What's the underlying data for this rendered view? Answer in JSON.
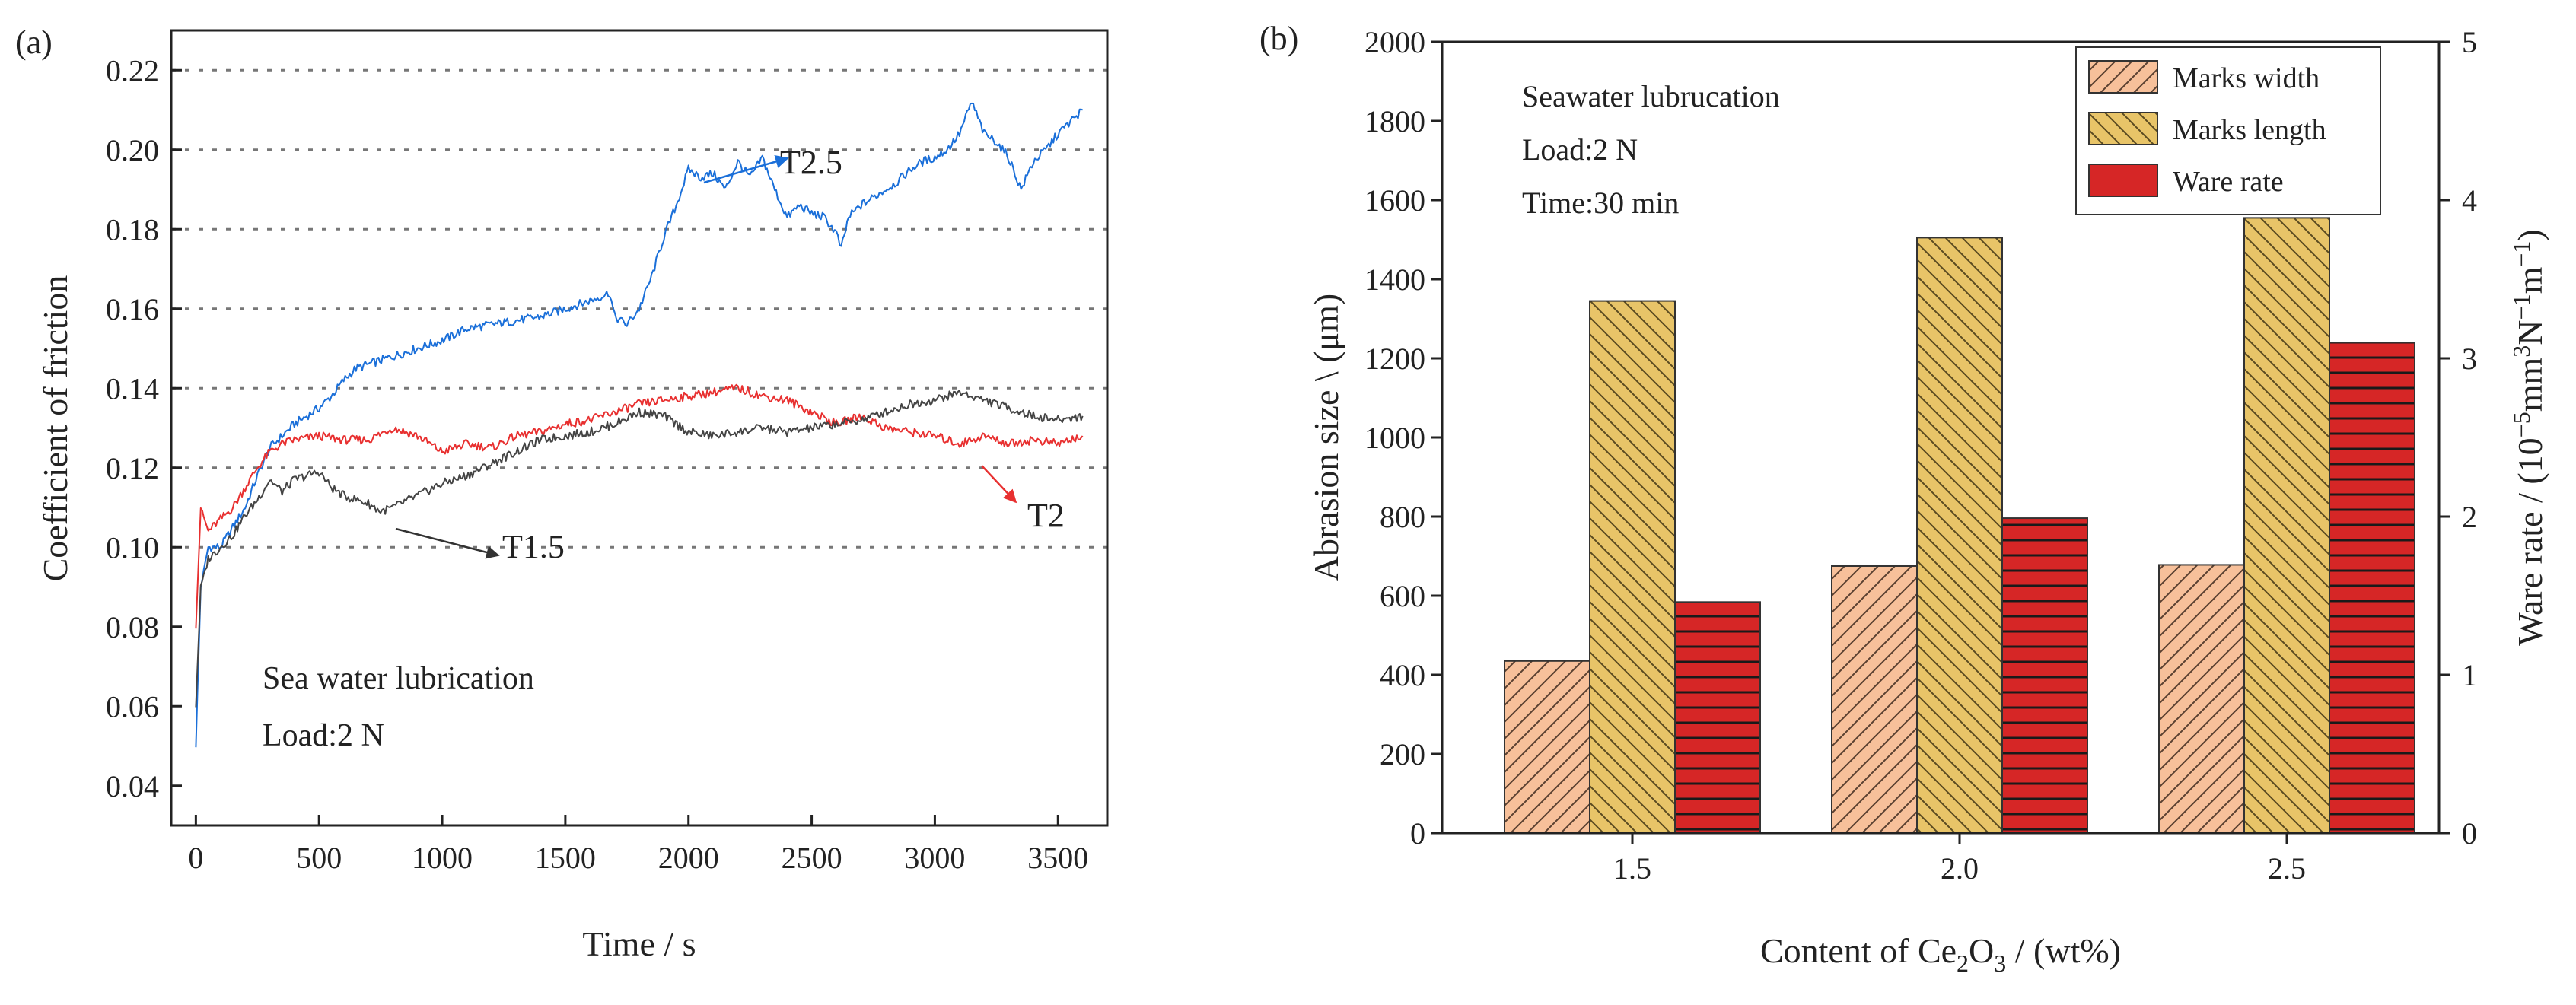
{
  "chart_data": [
    {
      "panel_label": "(a)",
      "type": "line",
      "xlabel": "Time / s",
      "ylabel": "Coefficient of friction",
      "xlim": [
        -100,
        3700
      ],
      "ylim": [
        0.03,
        0.23
      ],
      "xticks": [
        0,
        500,
        1000,
        1500,
        2000,
        2500,
        3000,
        3500
      ],
      "yticks": [
        0.04,
        0.06,
        0.08,
        0.1,
        0.12,
        0.14,
        0.16,
        0.18,
        0.2,
        0.22
      ],
      "ytick_labels": [
        "0.04",
        "0.06",
        "0.08",
        "0.10",
        "0.12",
        "0.14",
        "0.16",
        "0.18",
        "0.20",
        "0.22"
      ],
      "grid_lines_y": [
        0.1,
        0.12,
        0.14,
        0.16,
        0.18,
        0.2,
        0.22
      ],
      "annotations": [
        "Sea water lubrication",
        "Load:2 N"
      ],
      "colors": {
        "T2.5": "#1a6fd9",
        "T2": "#e83030",
        "T1.5": "#444444"
      },
      "series": [
        {
          "name": "T2.5",
          "color": "#1a6fd9",
          "x": [
            0,
            20,
            50,
            100,
            150,
            200,
            250,
            300,
            350,
            400,
            450,
            500,
            550,
            600,
            650,
            700,
            800,
            900,
            1000,
            1100,
            1200,
            1300,
            1400,
            1500,
            1600,
            1680,
            1700,
            1750,
            1800,
            1850,
            1900,
            1950,
            2000,
            2050,
            2100,
            2150,
            2200,
            2250,
            2300,
            2350,
            2400,
            2450,
            2500,
            2550,
            2600,
            2620,
            2650,
            2700,
            2750,
            2800,
            2850,
            2900,
            2950,
            3000,
            3050,
            3100,
            3150,
            3200,
            3250,
            3300,
            3350,
            3400,
            3450,
            3500,
            3550,
            3600
          ],
          "y": [
            0.05,
            0.09,
            0.1,
            0.1,
            0.105,
            0.11,
            0.118,
            0.125,
            0.128,
            0.131,
            0.133,
            0.135,
            0.138,
            0.142,
            0.145,
            0.146,
            0.148,
            0.15,
            0.152,
            0.155,
            0.156,
            0.157,
            0.158,
            0.16,
            0.162,
            0.164,
            0.158,
            0.156,
            0.16,
            0.168,
            0.178,
            0.186,
            0.195,
            0.193,
            0.194,
            0.19,
            0.197,
            0.193,
            0.198,
            0.19,
            0.183,
            0.186,
            0.184,
            0.183,
            0.179,
            0.175,
            0.183,
            0.186,
            0.188,
            0.19,
            0.192,
            0.195,
            0.197,
            0.198,
            0.2,
            0.204,
            0.212,
            0.204,
            0.202,
            0.198,
            0.19,
            0.197,
            0.2,
            0.204,
            0.207,
            0.21
          ],
          "label_text": "T2.5"
        },
        {
          "name": "T2",
          "color": "#e83030",
          "x": [
            0,
            20,
            50,
            100,
            150,
            200,
            250,
            300,
            350,
            400,
            500,
            600,
            700,
            800,
            900,
            1000,
            1100,
            1200,
            1300,
            1400,
            1500,
            1600,
            1700,
            1800,
            1900,
            2000,
            2100,
            2200,
            2300,
            2400,
            2500,
            2600,
            2700,
            2800,
            2900,
            3000,
            3100,
            3200,
            3300,
            3400,
            3500,
            3600
          ],
          "y": [
            0.08,
            0.11,
            0.104,
            0.107,
            0.11,
            0.115,
            0.12,
            0.124,
            0.126,
            0.127,
            0.128,
            0.127,
            0.127,
            0.13,
            0.128,
            0.124,
            0.126,
            0.125,
            0.128,
            0.129,
            0.131,
            0.132,
            0.134,
            0.136,
            0.137,
            0.138,
            0.139,
            0.14,
            0.138,
            0.137,
            0.134,
            0.131,
            0.133,
            0.13,
            0.129,
            0.128,
            0.126,
            0.128,
            0.126,
            0.127,
            0.126,
            0.128
          ],
          "label_text": "T2"
        },
        {
          "name": "T1.5",
          "color": "#444444",
          "x": [
            0,
            20,
            50,
            100,
            150,
            200,
            250,
            300,
            350,
            400,
            450,
            500,
            550,
            600,
            650,
            700,
            750,
            800,
            900,
            1000,
            1100,
            1200,
            1300,
            1400,
            1500,
            1600,
            1700,
            1800,
            1900,
            2000,
            2100,
            2200,
            2300,
            2400,
            2500,
            2600,
            2700,
            2800,
            2900,
            3000,
            3100,
            3200,
            3300,
            3400,
            3500,
            3600
          ],
          "y": [
            0.06,
            0.09,
            0.097,
            0.1,
            0.103,
            0.108,
            0.112,
            0.117,
            0.114,
            0.117,
            0.118,
            0.119,
            0.115,
            0.113,
            0.112,
            0.111,
            0.109,
            0.11,
            0.113,
            0.116,
            0.118,
            0.121,
            0.124,
            0.127,
            0.128,
            0.129,
            0.131,
            0.134,
            0.133,
            0.129,
            0.128,
            0.129,
            0.13,
            0.129,
            0.13,
            0.131,
            0.132,
            0.134,
            0.136,
            0.137,
            0.139,
            0.137,
            0.135,
            0.133,
            0.132,
            0.133
          ],
          "label_text": "T1.5"
        }
      ]
    },
    {
      "panel_label": "(b)",
      "type": "bar",
      "xlabel_parts": [
        "Content of Ce",
        "2",
        "O",
        "3",
        " / (wt%)"
      ],
      "ylabel": "Abrasion size \\ (μm)",
      "ylabel_right_parts": [
        "Ware rate / (10",
        "−5",
        "mm",
        "3",
        "N",
        "−1",
        "m",
        "−1",
        ")"
      ],
      "categories": [
        "1.5",
        "2.0",
        "2.5"
      ],
      "ylim": [
        0,
        2000
      ],
      "yticks": [
        0,
        200,
        400,
        600,
        800,
        1000,
        1200,
        1400,
        1600,
        1800,
        2000
      ],
      "ytick_labels": [
        "0",
        "200",
        "400",
        "600",
        "800",
        "1000",
        "1200",
        "1400",
        "1600",
        "1800",
        "2000"
      ],
      "ylim_right": [
        0,
        5
      ],
      "yticks_right": [
        0,
        1,
        2,
        3,
        4,
        5
      ],
      "ytick_labels_right": [
        "0",
        "1",
        "2",
        "3",
        "4",
        "5"
      ],
      "annotations": [
        "Seawater lubrucation",
        "Load:2 N",
        "Time:30 min"
      ],
      "legend_position": "top-right",
      "series": [
        {
          "name": "Marks width",
          "axis": "left",
          "color": "#f7c09a",
          "values": [
            435,
            675,
            678
          ]
        },
        {
          "name": "Marks length",
          "axis": "left",
          "color": "#e8c468",
          "values": [
            1345,
            1505,
            1555
          ]
        },
        {
          "name": "Ware rate",
          "axis": "right",
          "color": "#d62626",
          "values": [
            1.46,
            1.99,
            3.1
          ]
        }
      ]
    }
  ]
}
